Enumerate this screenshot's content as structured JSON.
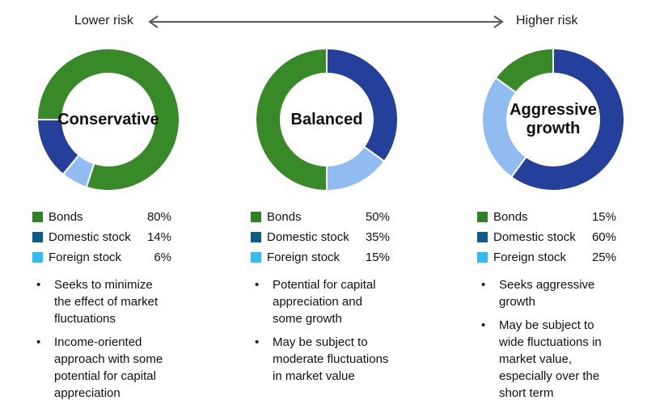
{
  "header": {
    "lower_risk": "Lower risk",
    "higher_risk": "Higher risk",
    "arrow_color": "#595959"
  },
  "glyphs": {
    "bullet": "•"
  },
  "portfolios": [
    {
      "name": "Conservative",
      "label_lines": [
        "Conservative"
      ],
      "segments": [
        {
          "label": "Bonds",
          "pct_label": "80%",
          "value": 80,
          "start_angle": 270,
          "donut_color": "#388a28",
          "legend_color": "#2f8128"
        },
        {
          "label": "Domestic stock",
          "pct_label": "14%",
          "value": 14,
          "start_angle": 219.6,
          "donut_color": "#25409a",
          "legend_color": "#0f5c8a"
        },
        {
          "label": "Foreign stock",
          "pct_label": "6%",
          "value": 6,
          "start_angle": 198,
          "donut_color": "#90bcf2",
          "legend_color": "#2fbcf2"
        }
      ],
      "bullets": [
        "Seeks to minimize the effect of market fluctuations",
        "Income-oriented approach with some potential for capital appreciation"
      ]
    },
    {
      "name": "Balanced",
      "label_lines": [
        "Balanced"
      ],
      "segments": [
        {
          "label": "Bonds",
          "pct_label": "50%",
          "value": 50,
          "start_angle": 180,
          "donut_color": "#388a28",
          "legend_color": "#2f8128"
        },
        {
          "label": "Domestic stock",
          "pct_label": "35%",
          "value": 35,
          "start_angle": 0,
          "donut_color": "#25409a",
          "legend_color": "#0f5c8a"
        },
        {
          "label": "Foreign stock",
          "pct_label": "15%",
          "value": 15,
          "start_angle": 126,
          "donut_color": "#90bcf2",
          "legend_color": "#2fbcf2"
        }
      ],
      "bullets": [
        "Potential for capital appreciation and some growth",
        "May be subject to moderate fluctuations in market value"
      ]
    },
    {
      "name": "Aggressive growth",
      "label_lines": [
        "Aggressive",
        "growth"
      ],
      "segments": [
        {
          "label": "Bonds",
          "pct_label": "15%",
          "value": 15,
          "start_angle": 306,
          "donut_color": "#388a28",
          "legend_color": "#2f8128"
        },
        {
          "label": "Domestic stock",
          "pct_label": "60%",
          "value": 60,
          "start_angle": 0,
          "donut_color": "#25409a",
          "legend_color": "#0f5c8a"
        },
        {
          "label": "Foreign stock",
          "pct_label": "25%",
          "value": 25,
          "start_angle": 216,
          "donut_color": "#90bcf2",
          "legend_color": "#2fbcf2"
        }
      ],
      "bullets": [
        "Seeks aggressive growth",
        "May be subject to wide fluctuations in market value, especially over the short term"
      ]
    }
  ],
  "chart_data": [
    {
      "type": "pie",
      "subtype": "donut",
      "title": "Conservative",
      "labels": [
        "Bonds",
        "Domestic stock",
        "Foreign stock"
      ],
      "values": [
        80,
        14,
        6
      ],
      "unit": "%",
      "legend_position": "below"
    },
    {
      "type": "pie",
      "subtype": "donut",
      "title": "Balanced",
      "labels": [
        "Bonds",
        "Domestic stock",
        "Foreign stock"
      ],
      "values": [
        50,
        35,
        15
      ],
      "unit": "%",
      "legend_position": "below"
    },
    {
      "type": "pie",
      "subtype": "donut",
      "title": "Aggressive growth",
      "labels": [
        "Bonds",
        "Domestic stock",
        "Foreign stock"
      ],
      "values": [
        15,
        60,
        25
      ],
      "unit": "%",
      "legend_position": "below"
    }
  ]
}
